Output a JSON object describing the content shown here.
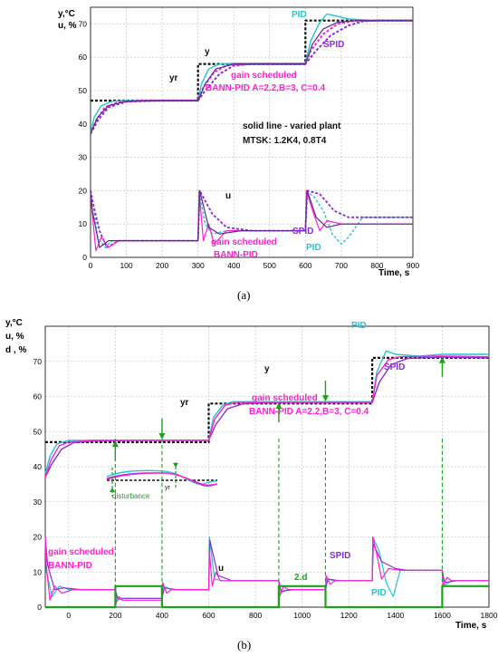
{
  "colors": {
    "ref": "#111111",
    "pid": "#21c6cf",
    "spid": "#8a2be2",
    "gs": "#ff1fd0",
    "plant": "#5b2a8c",
    "dist": "#1ea01e"
  },
  "chart_data": [
    {
      "type": "line",
      "panel_label": "(a)",
      "ylabel_lines": [
        "y,°C",
        "u, %"
      ],
      "xlabel": "Time, s",
      "xlim": [
        0,
        900
      ],
      "ylim": [
        0,
        75
      ],
      "xticks": [
        "0",
        "100",
        "200",
        "300",
        "400",
        "500",
        "600",
        "700",
        "800",
        "900"
      ],
      "yticks": [
        "0",
        "10",
        "20",
        "30",
        "40",
        "50",
        "60",
        "70"
      ],
      "grid": true,
      "annotations": {
        "y": "y",
        "yr": "yr",
        "u": "u",
        "pid": "PID",
        "spid": "SPID",
        "gs_top_1": "gain scheduled",
        "gs_top_2": "BANN-PID A=2.2,B=3, C=0.4",
        "note_1": "solid line - varied plant",
        "note_2": "MTSK: 1.2K4, 0.8T4",
        "gs_bottom_1": "gain scheduled",
        "gs_bottom_2": "BANN-PID"
      },
      "series": [
        {
          "name": "yr",
          "color": "ref",
          "dash": "3 2",
          "width": 2.2,
          "x": [
            0,
            300,
            300,
            600,
            600,
            900
          ],
          "y": [
            47,
            47,
            58,
            58,
            71,
            71
          ]
        },
        {
          "name": "PID",
          "color": "pid",
          "dash": "",
          "width": 1.4,
          "x": [
            0,
            10,
            30,
            60,
            100,
            200,
            300,
            310,
            330,
            360,
            400,
            500,
            600,
            615,
            640,
            660,
            680,
            720,
            800,
            900
          ],
          "y": [
            37,
            42,
            45.5,
            46.8,
            47,
            47,
            47,
            52,
            56.5,
            58,
            58.2,
            58.2,
            58.2,
            65,
            70.5,
            73,
            72.5,
            71.5,
            71,
            71
          ]
        },
        {
          "name": "SPID",
          "color": "spid",
          "dash": "3 2",
          "width": 2,
          "x": [
            0,
            20,
            50,
            100,
            200,
            300,
            320,
            360,
            400,
            450,
            600,
            630,
            670,
            720,
            760,
            800,
            900
          ],
          "y": [
            37,
            41,
            45,
            46.7,
            47,
            47,
            50,
            55,
            57.5,
            58,
            58,
            62,
            66.5,
            69.5,
            70.8,
            71,
            71
          ]
        },
        {
          "name": "gain scheduled BANN-PID",
          "color": "gs",
          "dash": "3 2",
          "width": 2,
          "x": [
            0,
            15,
            40,
            80,
            150,
            300,
            315,
            345,
            380,
            450,
            600,
            615,
            650,
            690,
            740,
            900
          ],
          "y": [
            37,
            41,
            45,
            46.6,
            47,
            47,
            51,
            55.5,
            57.6,
            58,
            58,
            62,
            67,
            70,
            71,
            71
          ]
        },
        {
          "name": "varied plant",
          "color": "plant",
          "dash": "",
          "width": 1.2,
          "x": [
            0,
            20,
            50,
            100,
            200,
            300,
            320,
            350,
            400,
            600,
            620,
            650,
            690,
            740,
            900
          ],
          "y": [
            37,
            42,
            45.5,
            46.8,
            47,
            47,
            52,
            56.5,
            58,
            58,
            64,
            68.5,
            70.5,
            71,
            71
          ]
        },
        {
          "name": "u PID",
          "color": "pid",
          "dash": "3 2",
          "width": 1.4,
          "x": [
            0,
            5,
            20,
            40,
            60,
            100,
            300,
            303,
            320,
            340,
            380,
            450,
            600,
            603,
            625,
            650,
            675,
            700,
            720,
            760,
            800,
            900
          ],
          "y": [
            20,
            18,
            6,
            3,
            5,
            5,
            5,
            20,
            10,
            7,
            8,
            8,
            8,
            20,
            18,
            14,
            7,
            4,
            6,
            12,
            12,
            12
          ]
        },
        {
          "name": "u SPID",
          "color": "spid",
          "dash": "3 2",
          "width": 1.8,
          "x": [
            0,
            5,
            25,
            45,
            80,
            150,
            300,
            305,
            340,
            380,
            450,
            600,
            605,
            640,
            680,
            720,
            760,
            800,
            900
          ],
          "y": [
            20,
            17,
            8,
            3,
            5,
            5,
            5,
            20,
            13,
            9,
            8,
            8,
            20,
            19,
            14,
            12,
            12,
            12,
            12
          ]
        },
        {
          "name": "u gain scheduled",
          "color": "gs",
          "dash": "",
          "width": 1.2,
          "x": [
            0,
            4,
            15,
            30,
            50,
            80,
            150,
            300,
            303,
            315,
            330,
            345,
            380,
            450,
            600,
            603,
            620,
            640,
            660,
            700,
            760,
            900
          ],
          "y": [
            20,
            14,
            2,
            6,
            3,
            5,
            5,
            5,
            20,
            5,
            10,
            4,
            8,
            8,
            8,
            20,
            14,
            8,
            11,
            10,
            10,
            10
          ]
        },
        {
          "name": "u varied plant",
          "color": "plant",
          "dash": "",
          "width": 1.2,
          "x": [
            0,
            5,
            25,
            50,
            100,
            300,
            305,
            330,
            360,
            420,
            600,
            605,
            630,
            660,
            700,
            760,
            900
          ],
          "y": [
            20,
            14,
            3,
            5,
            5,
            5,
            20,
            9,
            7,
            8,
            8,
            20,
            12,
            9,
            10,
            10,
            10
          ]
        }
      ]
    },
    {
      "type": "line",
      "panel_label": "(b)",
      "ylabel_lines": [
        "y,°C",
        "u, %",
        "d , %"
      ],
      "xlabel": "Time, s",
      "xlim": [
        -100,
        1800
      ],
      "ylim": [
        0,
        80
      ],
      "xticks": [
        "0",
        "200",
        "400",
        "600",
        "800",
        "1000",
        "1200",
        "1400",
        "1600",
        "1800"
      ],
      "yticks": [
        "0",
        "10",
        "20",
        "30",
        "40",
        "50",
        "60",
        "70"
      ],
      "grid": true,
      "annotations": {
        "y": "y",
        "yr": "yr",
        "u": "u",
        "pid_top": "PID",
        "spid_top": "SPID",
        "gs_top_1": "gain scheduled",
        "gs_top_2": "BANN-PID A=2.2,B=3, C=0.4",
        "inset_disturbance": "disturbance",
        "inset_yr": "yr",
        "gs_bottom_1": "gain scheduled",
        "gs_bottom_2": "BANN-PID",
        "spid_bottom": "SPID",
        "pid_bottom": "PID",
        "d2": "2.d"
      },
      "series": [
        {
          "name": "yr",
          "color": "ref",
          "dash": "3 2",
          "width": 2.2,
          "x": [
            -100,
            400,
            400,
            600,
            600,
            1300,
            1300,
            1800
          ],
          "y": [
            47,
            47,
            47,
            47,
            58,
            58,
            71,
            71
          ]
        },
        {
          "name": "PID",
          "color": "pid",
          "dash": "",
          "width": 1.4,
          "x": [
            -100,
            -80,
            -50,
            0,
            100,
            200,
            300,
            400,
            500,
            600,
            620,
            660,
            700,
            900,
            1100,
            1300,
            1320,
            1360,
            1400,
            1500,
            1600,
            1800
          ],
          "y": [
            38,
            43,
            46.5,
            47.5,
            47.5,
            47.5,
            47.5,
            47.5,
            47.5,
            47.5,
            54,
            57.5,
            58.5,
            58.5,
            58.5,
            58.5,
            67,
            73,
            72,
            71.5,
            72,
            72
          ]
        },
        {
          "name": "SPID",
          "color": "spid",
          "dash": "",
          "width": 1.4,
          "x": [
            -100,
            -70,
            -30,
            20,
            100,
            300,
            400,
            500,
            600,
            630,
            680,
            750,
            900,
            1100,
            1300,
            1330,
            1380,
            1450,
            1600,
            1800
          ],
          "y": [
            37,
            41,
            45,
            46.8,
            47.3,
            47.5,
            47.5,
            47.5,
            47.5,
            52,
            56.5,
            58,
            58.3,
            58.3,
            58.3,
            64,
            69,
            70.8,
            71.2,
            71
          ]
        },
        {
          "name": "gain scheduled BANN-PID",
          "color": "gs",
          "dash": "",
          "width": 1.4,
          "x": [
            -100,
            -75,
            -40,
            0,
            100,
            300,
            400,
            500,
            600,
            625,
            670,
            720,
            900,
            1100,
            1300,
            1320,
            1370,
            1420,
            1600,
            1800
          ],
          "y": [
            37,
            42,
            46,
            47,
            47.5,
            47.5,
            47.5,
            47.5,
            47.5,
            53.5,
            57.5,
            58.3,
            58.3,
            58.3,
            58.3,
            66,
            70.5,
            71.3,
            71.5,
            71.3
          ]
        },
        {
          "name": "u PID",
          "color": "pid",
          "dash": "",
          "width": 1.2,
          "x": [
            -100,
            -95,
            -70,
            -40,
            0,
            200,
            205,
            240,
            400,
            405,
            440,
            600,
            603,
            625,
            660,
            900,
            905,
            940,
            1100,
            1105,
            1140,
            1300,
            1303,
            1330,
            1360,
            1390,
            1420,
            1600,
            1605,
            1640,
            1800
          ],
          "y": [
            20,
            10,
            3,
            6,
            5,
            5,
            2,
            2.5,
            2.5,
            6,
            5,
            5,
            20,
            8,
            7.5,
            7.5,
            4,
            5,
            5,
            8,
            7.5,
            7.5,
            20,
            16,
            7,
            3,
            10.5,
            10.5,
            6,
            7.5,
            7.5
          ]
        },
        {
          "name": "u SPID",
          "color": "spid",
          "dash": "",
          "width": 1.2,
          "x": [
            -100,
            -90,
            -60,
            -20,
            50,
            200,
            210,
            260,
            400,
            410,
            460,
            600,
            605,
            640,
            700,
            900,
            910,
            960,
            1100,
            1110,
            1160,
            1300,
            1305,
            1340,
            1400,
            1450,
            1600,
            1610,
            1660,
            1800
          ],
          "y": [
            20,
            12,
            5,
            5.5,
            5,
            5,
            2.5,
            2.5,
            2.5,
            5.5,
            5,
            5,
            19,
            9,
            7.5,
            7.5,
            4.5,
            5,
            5,
            8,
            7.5,
            7.5,
            18,
            13,
            11,
            10.5,
            10.5,
            7,
            7.5,
            7.5
          ]
        },
        {
          "name": "u gain scheduled",
          "color": "gs",
          "dash": "",
          "width": 1.2,
          "x": [
            -100,
            -96,
            -80,
            -60,
            -30,
            20,
            200,
            203,
            215,
            230,
            400,
            403,
            420,
            440,
            600,
            603,
            615,
            630,
            650,
            900,
            903,
            920,
            940,
            1100,
            1103,
            1120,
            1140,
            1300,
            1303,
            1320,
            1340,
            1370,
            1420,
            1600,
            1603,
            1620,
            1640,
            1800
          ],
          "y": [
            20,
            12,
            2,
            6,
            4,
            5,
            5,
            1,
            3,
            2,
            2,
            7,
            4,
            5,
            5,
            16,
            6,
            10,
            7.5,
            7.5,
            3,
            6,
            5,
            5,
            9,
            6.5,
            7.5,
            7.5,
            20,
            15,
            8,
            11,
            10.5,
            10.5,
            6,
            8.5,
            7.5,
            7.5
          ]
        },
        {
          "name": "2.d",
          "color": "dist",
          "dash": "",
          "width": 2.2,
          "x": [
            -100,
            200,
            200,
            400,
            400,
            900,
            900,
            1100,
            1100,
            1600,
            1600,
            1800
          ],
          "y": [
            0,
            0,
            6,
            6,
            0,
            0,
            6,
            6,
            0,
            0,
            6,
            6
          ]
        }
      ],
      "disturbance_times": [
        200,
        400,
        900,
        1100,
        1600
      ],
      "arrows": [
        {
          "x": 200,
          "dir": "up"
        },
        {
          "x": 400,
          "dir": "down"
        },
        {
          "x": 900,
          "dir": "up"
        },
        {
          "x": 1100,
          "dir": "down"
        },
        {
          "x": 1600,
          "dir": "up"
        }
      ]
    }
  ]
}
